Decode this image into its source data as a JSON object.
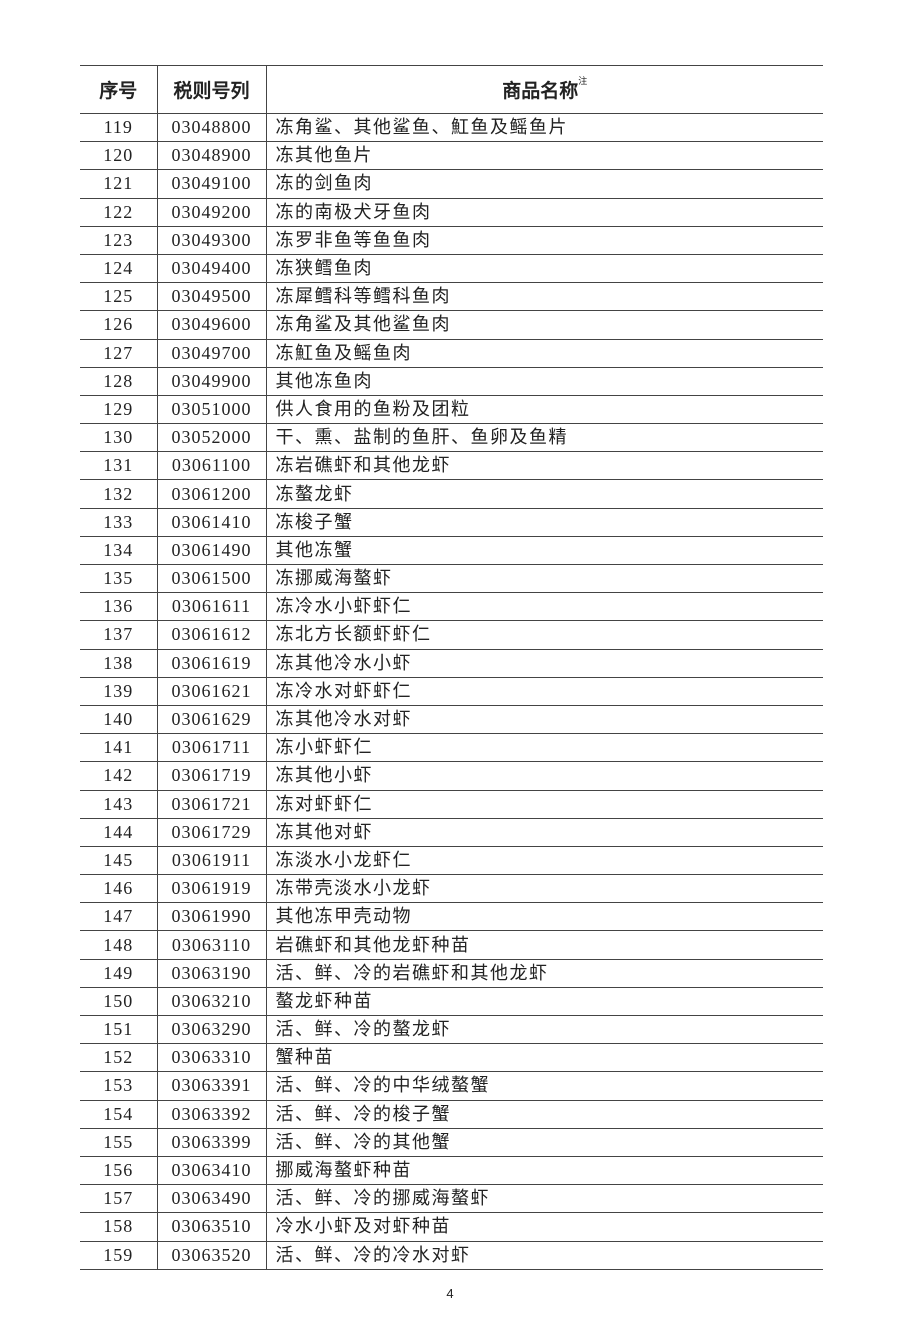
{
  "table": {
    "headers": {
      "index": "序号",
      "code": "税则号列",
      "name": "商品名称",
      "name_note": "注"
    },
    "rows": [
      [
        "119",
        "03048800",
        "冻角鲨、其他鲨鱼、魟鱼及鳐鱼片"
      ],
      [
        "120",
        "03048900",
        "冻其他鱼片"
      ],
      [
        "121",
        "03049100",
        "冻的剑鱼肉"
      ],
      [
        "122",
        "03049200",
        "冻的南极犬牙鱼肉"
      ],
      [
        "123",
        "03049300",
        "冻罗非鱼等鱼鱼肉"
      ],
      [
        "124",
        "03049400",
        "冻狭鳕鱼肉"
      ],
      [
        "125",
        "03049500",
        "冻犀鳕科等鳕科鱼肉"
      ],
      [
        "126",
        "03049600",
        "冻角鲨及其他鲨鱼肉"
      ],
      [
        "127",
        "03049700",
        "冻魟鱼及鳐鱼肉"
      ],
      [
        "128",
        "03049900",
        "其他冻鱼肉"
      ],
      [
        "129",
        "03051000",
        "供人食用的鱼粉及团粒"
      ],
      [
        "130",
        "03052000",
        "干、熏、盐制的鱼肝、鱼卵及鱼精"
      ],
      [
        "131",
        "03061100",
        "冻岩礁虾和其他龙虾"
      ],
      [
        "132",
        "03061200",
        "冻螯龙虾"
      ],
      [
        "133",
        "03061410",
        "冻梭子蟹"
      ],
      [
        "134",
        "03061490",
        "其他冻蟹"
      ],
      [
        "135",
        "03061500",
        "冻挪威海螯虾"
      ],
      [
        "136",
        "03061611",
        "冻冷水小虾虾仁"
      ],
      [
        "137",
        "03061612",
        "冻北方长额虾虾仁"
      ],
      [
        "138",
        "03061619",
        "冻其他冷水小虾"
      ],
      [
        "139",
        "03061621",
        "冻冷水对虾虾仁"
      ],
      [
        "140",
        "03061629",
        "冻其他冷水对虾"
      ],
      [
        "141",
        "03061711",
        "冻小虾虾仁"
      ],
      [
        "142",
        "03061719",
        "冻其他小虾"
      ],
      [
        "143",
        "03061721",
        "冻对虾虾仁"
      ],
      [
        "144",
        "03061729",
        "冻其他对虾"
      ],
      [
        "145",
        "03061911",
        "冻淡水小龙虾仁"
      ],
      [
        "146",
        "03061919",
        "冻带壳淡水小龙虾"
      ],
      [
        "147",
        "03061990",
        "其他冻甲壳动物"
      ],
      [
        "148",
        "03063110",
        "岩礁虾和其他龙虾种苗"
      ],
      [
        "149",
        "03063190",
        "活、鲜、冷的岩礁虾和其他龙虾"
      ],
      [
        "150",
        "03063210",
        "螯龙虾种苗"
      ],
      [
        "151",
        "03063290",
        "活、鲜、冷的螯龙虾"
      ],
      [
        "152",
        "03063310",
        "蟹种苗"
      ],
      [
        "153",
        "03063391",
        "活、鲜、冷的中华绒螯蟹"
      ],
      [
        "154",
        "03063392",
        "活、鲜、冷的梭子蟹"
      ],
      [
        "155",
        "03063399",
        "活、鲜、冷的其他蟹"
      ],
      [
        "156",
        "03063410",
        "挪威海螯虾种苗"
      ],
      [
        "157",
        "03063490",
        "活、鲜、冷的挪威海螯虾"
      ],
      [
        "158",
        "03063510",
        "冷水小虾及对虾种苗"
      ],
      [
        "159",
        "03063520",
        "活、鲜、冷的冷水对虾"
      ]
    ]
  },
  "page_number": "4"
}
